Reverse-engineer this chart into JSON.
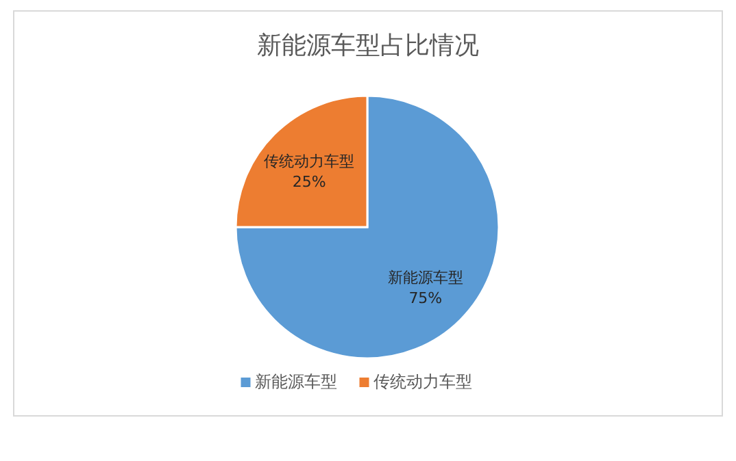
{
  "chart_data": {
    "type": "pie",
    "title": "新能源车型占比情况",
    "categories": [
      "新能源车型",
      "传统动力车型"
    ],
    "values": [
      75,
      25
    ],
    "colors": [
      "#5b9bd5",
      "#ed7d31"
    ],
    "value_labels": [
      "75%",
      "25%"
    ],
    "legend": "bottom"
  }
}
